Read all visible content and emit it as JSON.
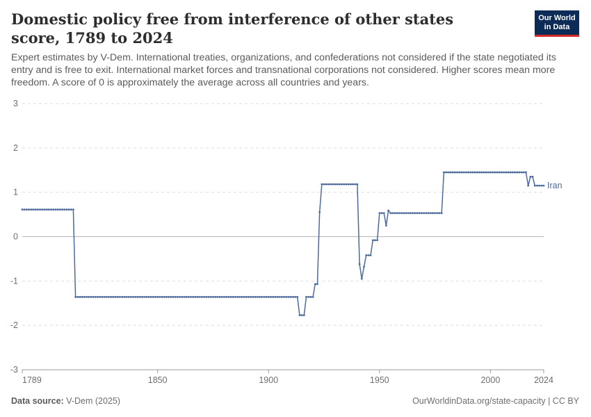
{
  "header": {
    "title": "Domestic policy free from interference of other states score, 1789 to 2024",
    "subtitle": "Expert estimates by V-Dem. International treaties, organizations, and confederations not considered if the state negotiated its entry and is free to exit. International market forces and transnational corporations not considered. Higher scores mean more freedom. A score of 0 is approximately the average across all countries and years.",
    "logo_line1": "Our World",
    "logo_line2": "in Data"
  },
  "footer": {
    "source_label": "Data source:",
    "source_value": "V-Dem (2025)",
    "link": "OurWorldinData.org/state-capacity | CC BY"
  },
  "colors": {
    "series": "#4c6a9c",
    "grid": "#dddddd",
    "zero": "#b5b5b5"
  },
  "chart_data": {
    "type": "line",
    "xlim": [
      1789,
      2024
    ],
    "ylim": [
      -3,
      3
    ],
    "yticks": [
      -3,
      -2,
      -1,
      0,
      1,
      2,
      3
    ],
    "xticks": [
      1789,
      1850,
      1900,
      1950,
      2000,
      2024
    ],
    "series": [
      {
        "name": "Iran",
        "color": "#4c6a9c",
        "segments": [
          [
            1789,
            1812,
            0.61
          ],
          [
            1813,
            1913,
            -1.36
          ],
          [
            1914,
            1916,
            -1.77
          ],
          [
            1917,
            1920,
            -1.36
          ],
          [
            1921,
            1922,
            -1.07
          ],
          [
            1923,
            1923,
            0.55
          ],
          [
            1924,
            1940,
            1.18
          ],
          [
            1941,
            1941,
            -0.62
          ],
          [
            1942,
            1942,
            -0.95
          ],
          [
            1943,
            1943,
            -0.68
          ],
          [
            1944,
            1946,
            -0.42
          ],
          [
            1947,
            1949,
            -0.08
          ],
          [
            1950,
            1952,
            0.53
          ],
          [
            1953,
            1953,
            0.25
          ],
          [
            1954,
            1954,
            0.59
          ],
          [
            1955,
            1978,
            0.53
          ],
          [
            1979,
            2016,
            1.45
          ],
          [
            2017,
            2017,
            1.15
          ],
          [
            2018,
            2019,
            1.35
          ],
          [
            2020,
            2024,
            1.15
          ]
        ]
      }
    ]
  }
}
